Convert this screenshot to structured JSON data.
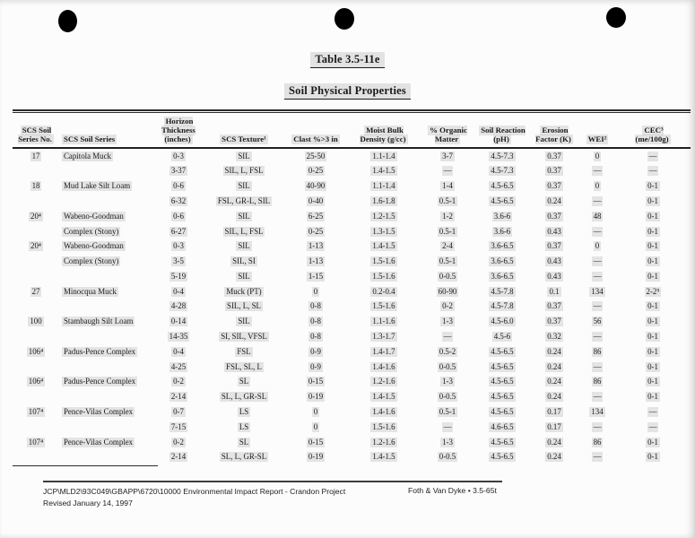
{
  "page": {
    "title": "Table 3.5-11e",
    "subtitle": "Soil Physical Properties"
  },
  "table": {
    "headers": [
      "SCS Soil\nSeries No.",
      "SCS Soil Series",
      "Horizon\nThickness\n(inches)",
      "SCS Texture¹",
      "Clast %>3 in",
      "Moist Bulk\nDensity (g/cc)",
      "% Organic\nMatter",
      "Soil Reaction\n(pH)",
      "Erosion\nFactor (K)",
      "WEI²",
      "CEC³\n(me/100g)"
    ],
    "rows": [
      [
        "17",
        "Capitola Muck",
        "0-3",
        "SIL",
        "25-50",
        "1.1-1.4",
        "3-7",
        "4.5-7.3",
        "0.37",
        "0",
        "—"
      ],
      [
        "",
        "",
        "3-37",
        "SIL, L, FSL",
        "0-25",
        "1.4-1.5",
        "—",
        "4.5-7.3",
        "0.37",
        "—",
        "—"
      ],
      [
        "18",
        "Mud Lake Silt Loam",
        "0-6",
        "SIL",
        "40-90",
        "1.1-1.4",
        "1-4",
        "4.5-6.5",
        "0.37",
        "0",
        "0-1"
      ],
      [
        "",
        "",
        "6-32",
        "FSL, GR-L, SIL",
        "0-40",
        "1.6-1.8",
        "0.5-1",
        "4.5-6.5",
        "0.24",
        "—",
        "0-1"
      ],
      [
        "20⁴",
        "Wabeno-Goodman",
        "0-6",
        "SIL",
        "6-25",
        "1.2-1.5",
        "1-2",
        "3.6-6",
        "0.37",
        "48",
        "0-1"
      ],
      [
        "",
        "Complex (Stony)",
        "6-27",
        "SIL, L, FSL",
        "0-25",
        "1.3-1.5",
        "0.5-1",
        "3.6-6",
        "0.43",
        "—",
        "0-1"
      ],
      [
        "20⁴",
        "Wabeno-Goodman",
        "0-3",
        "SIL",
        "1-13",
        "1.4-1.5",
        "2-4",
        "3.6-6.5",
        "0.37",
        "0",
        "0-1"
      ],
      [
        "",
        "Complex (Stony)",
        "3-5",
        "SIL, SI",
        "1-13",
        "1.5-1.6",
        "0.5-1",
        "3.6-6.5",
        "0.43",
        "—",
        "0-1"
      ],
      [
        "",
        "",
        "5-19",
        "SIL",
        "1-15",
        "1.5-1.6",
        "0-0.5",
        "3.6-6.5",
        "0.43",
        "—",
        "0-1"
      ],
      [
        "27",
        "Minocqua Muck",
        "0-4",
        "Muck (PT)",
        "0",
        "0.2-0.4",
        "60-90",
        "4.5-7.8",
        "0.1",
        "134",
        "2-2⁵"
      ],
      [
        "",
        "",
        "4-28",
        "SIL, L, SL",
        "0-8",
        "1.5-1.6",
        "0-2",
        "4.5-7.8",
        "0.37",
        "—",
        "0-1"
      ],
      [
        "100",
        "Stambaugh Silt Loam",
        "0-14",
        "SIL",
        "0-8",
        "1.1-1.6",
        "1-3",
        "4.5-6.0",
        "0.37",
        "56",
        "0-1"
      ],
      [
        "",
        "",
        "14-35",
        "SI, SIL, VFSL",
        "0-8",
        "1.3-1.7",
        "—",
        "4.5-6",
        "0.32",
        "—",
        "0-1"
      ],
      [
        "106⁴",
        "Padus-Pence Complex",
        "0-4",
        "FSL",
        "0-9",
        "1.4-1.7",
        "0.5-2",
        "4.5-6.5",
        "0.24",
        "86",
        "0-1"
      ],
      [
        "",
        "",
        "4-25",
        "FSL, SL, L",
        "0-9",
        "1.4-1.6",
        "0-0.5",
        "4.5-6.5",
        "0.24",
        "—",
        "0-1"
      ],
      [
        "106⁴",
        "Padus-Pence Complex",
        "0-2",
        "SL",
        "0-15",
        "1.2-1.6",
        "1-3",
        "4.5-6.5",
        "0.24",
        "86",
        "0-1"
      ],
      [
        "",
        "",
        "2-14",
        "SL, L, GR-SL",
        "0-19",
        "1.4-1.5",
        "0-0.5",
        "4.5-6.5",
        "0.24",
        "—",
        "0-1"
      ],
      [
        "107⁴",
        "Pence-Vilas Complex",
        "0-7",
        "LS",
        "0",
        "1.4-1.6",
        "0.5-1",
        "4.5-6.5",
        "0.17",
        "134",
        "—"
      ],
      [
        "",
        "",
        "7-15",
        "LS",
        "0",
        "1.5-1.6",
        "—",
        "4.6-6.5",
        "0.17",
        "—",
        "—"
      ],
      [
        "107⁴",
        "Pence-Vilas Complex",
        "0-2",
        "SL",
        "0-15",
        "1.2-1.6",
        "1-3",
        "4.5-6.5",
        "0.24",
        "86",
        "0-1"
      ],
      [
        "",
        "",
        "2-14",
        "SL, L, GR-SL",
        "0-19",
        "1.4-1.5",
        "0-0.5",
        "4.5-6.5",
        "0.24",
        "—",
        "0-1"
      ]
    ]
  },
  "footer": {
    "left_line1": "JCP\\MLD2\\93C049\\GBAPP\\6720\\10000  Environmental Impact Report - Crandon Project",
    "left_line2": "Revised January 14, 1997",
    "right": "Foth & Van Dyke • 3.5-65t"
  }
}
